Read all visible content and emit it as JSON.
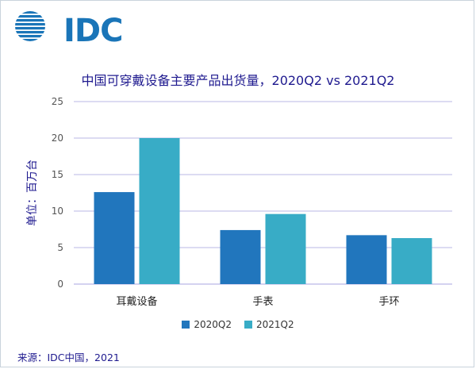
{
  "brand": {
    "logo_text": "IDC"
  },
  "footer": {
    "source": "来源：IDC中国，2021"
  },
  "chart_data": {
    "type": "bar",
    "title": "中国可穿戴设备主要产品出货量，2020Q2 vs 2021Q2",
    "xlabel": "",
    "ylabel": "单位：百万台",
    "ylim": [
      0,
      25
    ],
    "yticks": [
      0,
      5,
      10,
      15,
      20,
      25
    ],
    "categories": [
      "耳戴设备",
      "手表",
      "手环"
    ],
    "series": [
      {
        "name": "2020Q2",
        "color": "#2176bd",
        "values": [
          12.6,
          7.4,
          6.7
        ]
      },
      {
        "name": "2021Q2",
        "color": "#38acc6",
        "values": [
          20.0,
          9.6,
          6.3
        ]
      }
    ],
    "grid": true,
    "legend_position": "bottom"
  }
}
